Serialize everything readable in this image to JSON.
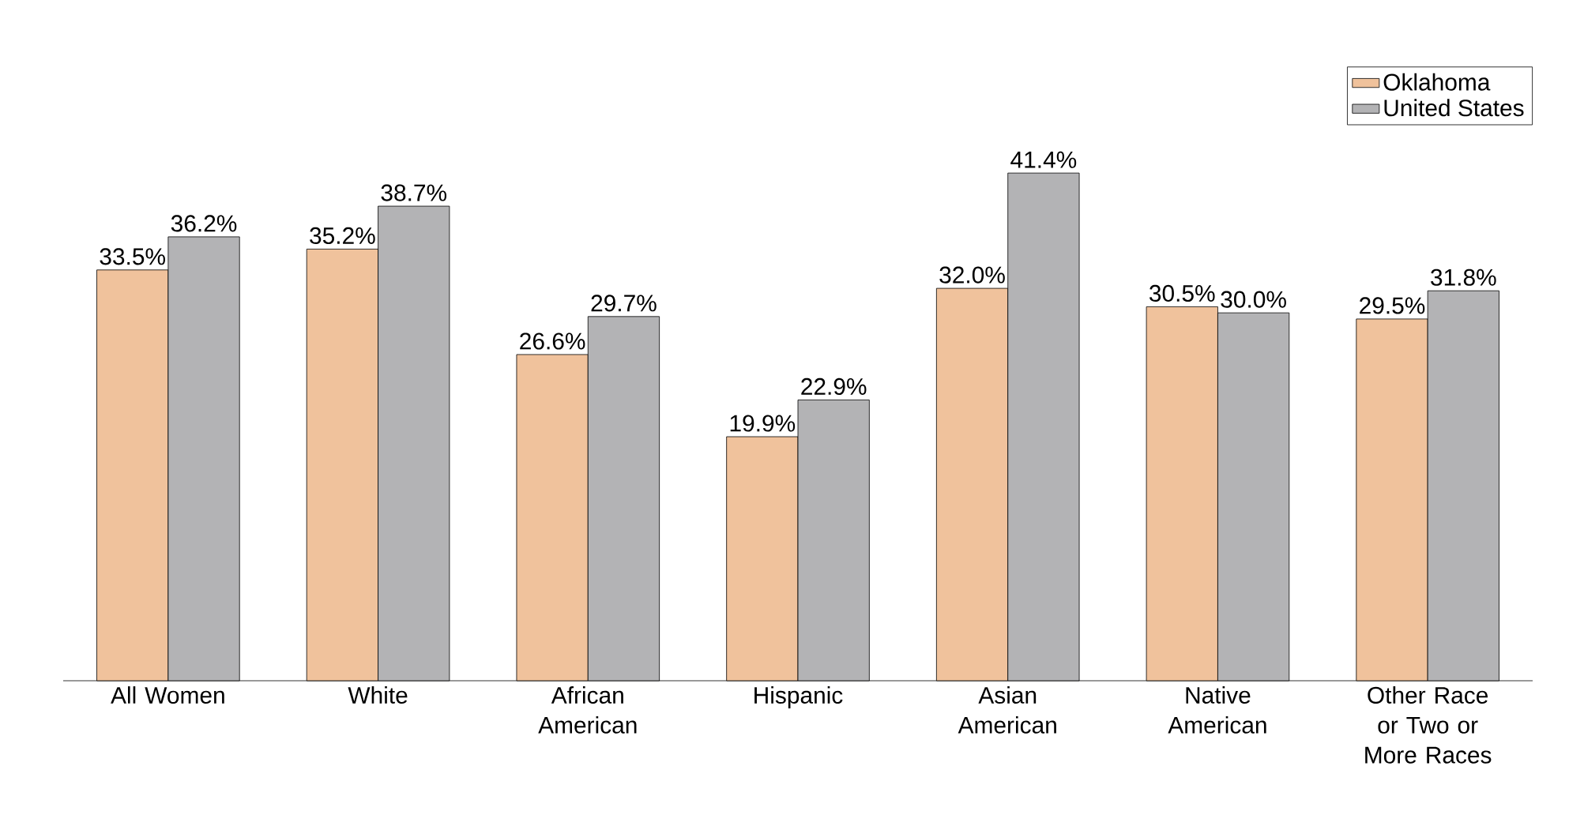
{
  "chart_data": {
    "type": "bar",
    "categories": [
      "All Women",
      "White",
      "African American",
      "Hispanic",
      "Asian American",
      "Native American",
      "Other Race or Two or More Races"
    ],
    "series": [
      {
        "name": "Oklahoma",
        "color": "#f0c29c",
        "values": [
          33.5,
          35.2,
          26.6,
          19.9,
          32.0,
          30.5,
          29.5
        ],
        "value_labels": [
          "33.5%",
          "35.2%",
          "26.6%",
          "19.9%",
          "32.0%",
          "30.5%",
          "29.5%"
        ]
      },
      {
        "name": "United States",
        "color": "#b3b3b5",
        "values": [
          36.2,
          38.7,
          29.7,
          22.9,
          41.4,
          30.0,
          31.8
        ],
        "value_labels": [
          "36.2%",
          "38.7%",
          "29.7%",
          "22.9%",
          "41.4%",
          "30.0%",
          "31.8%"
        ]
      }
    ],
    "legend": "top right"
  }
}
